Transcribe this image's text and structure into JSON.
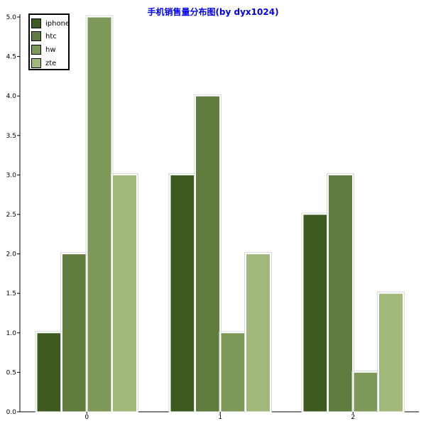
{
  "chart_data": {
    "type": "bar",
    "title": "手机销售量分布图(by dyx1024)",
    "categories": [
      "0",
      "1",
      "2"
    ],
    "series": [
      {
        "name": "iphone",
        "values": [
          1.0,
          3.0,
          2.5
        ],
        "color": "#3d5a1f"
      },
      {
        "name": "htc",
        "values": [
          2.0,
          4.0,
          3.0
        ],
        "color": "#5f7b3e"
      },
      {
        "name": "hw",
        "values": [
          5.0,
          1.0,
          0.5
        ],
        "color": "#7e9859"
      },
      {
        "name": "zte",
        "values": [
          3.0,
          2.0,
          1.5
        ],
        "color": "#a0b87a"
      }
    ],
    "ylim": [
      0,
      5.0
    ],
    "yticks": [
      "0.0",
      "0.5",
      "1.0",
      "1.5",
      "2.0",
      "2.5",
      "3.0",
      "3.5",
      "4.0",
      "4.5",
      "5.0"
    ],
    "legend_position": "top-left",
    "grid": false,
    "title_color": "#0000ee"
  }
}
